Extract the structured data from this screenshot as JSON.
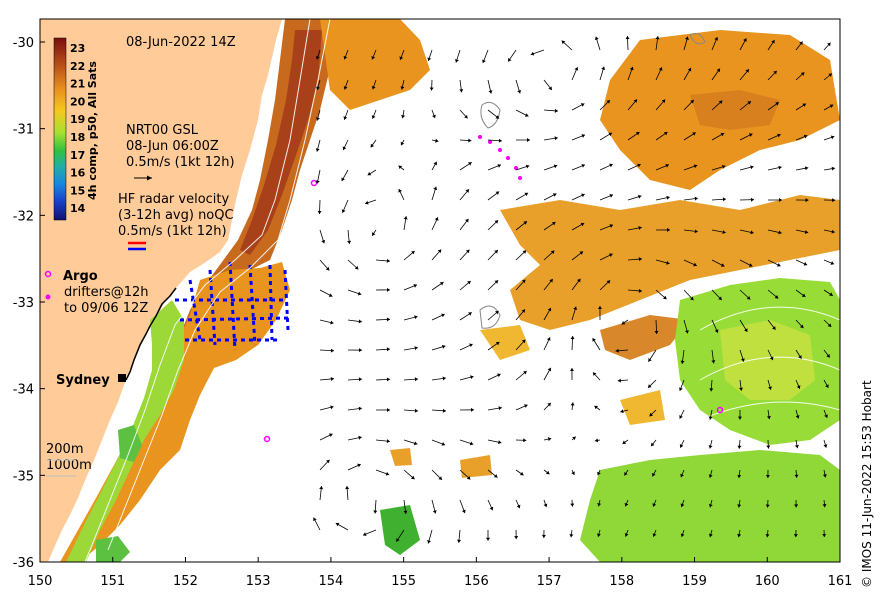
{
  "map": {
    "timestamp": "08-Jun-2022 14Z",
    "colorbar_title": "4h comp, p50, All Sats",
    "colorbar_ticks": [
      "23",
      "22",
      "21",
      "20",
      "19",
      "18",
      "17",
      "16",
      "15",
      "14"
    ],
    "legend": {
      "gsl_line1": "NRT00 GSL",
      "gsl_line2": "08-Jun 06:00Z",
      "gsl_line3": "0.5m/s (1kt 12h)",
      "hf_line1": "HF radar velocity",
      "hf_line2": "(3-12h avg) noQC",
      "hf_line3": "0.5m/s (1kt 12h)",
      "argo": "Argo",
      "drifters_line1": "drifters@12h",
      "drifters_line2": "to 09/06 12Z",
      "isobath_200": "200m",
      "isobath_1000": "1000m"
    },
    "city": "Sydney",
    "credit": "© IMOS 11-Jun-2022 15:53 Hobart",
    "x_ticks": [
      "150",
      "151",
      "152",
      "153",
      "154",
      "155",
      "156",
      "157",
      "158",
      "159",
      "160",
      "161"
    ],
    "y_ticks": [
      "-30",
      "-31",
      "-32",
      "-33",
      "-34",
      "-35",
      "-36"
    ],
    "colors": {
      "land": "#FFCC99",
      "sst_warm": "#C0501A",
      "sst_mid": "#E8901E",
      "sst_cool": "#88D838",
      "argo": "#FF00FF",
      "hf_radar": "#0000FF"
    }
  }
}
